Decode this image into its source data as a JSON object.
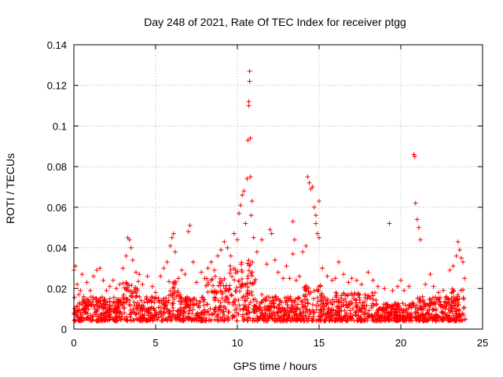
{
  "chart_data": {
    "type": "scatter",
    "title": "Day 248 of 2021, Rate Of TEC Index for receiver ptgg",
    "xlabel": "GPS time / hours",
    "ylabel": "ROTI / TECUs",
    "xlim": [
      0,
      25
    ],
    "ylim": [
      0,
      0.14
    ],
    "grid": true,
    "marker": "plus",
    "color": "#ff0000",
    "xticks": [
      {
        "value": 0,
        "label": "0"
      },
      {
        "value": 5,
        "label": "5"
      },
      {
        "value": 10,
        "label": "10"
      },
      {
        "value": 15,
        "label": "15"
      },
      {
        "value": 20,
        "label": "20"
      },
      {
        "value": 25,
        "label": "25"
      }
    ],
    "yticks": [
      {
        "value": 0,
        "label": "0"
      },
      {
        "value": 0.02,
        "label": "0.02"
      },
      {
        "value": 0.04,
        "label": "0.04"
      },
      {
        "value": 0.06,
        "label": "0.06"
      },
      {
        "value": 0.08,
        "label": "0.08"
      },
      {
        "value": 0.1,
        "label": "0.1"
      },
      {
        "value": 0.12,
        "label": "0.12"
      },
      {
        "value": 0.14,
        "label": "0.14"
      }
    ],
    "points": [
      [
        0.0,
        0.029
      ],
      [
        0.1,
        0.031
      ],
      [
        0.2,
        0.022
      ],
      [
        0.3,
        0.017
      ],
      [
        0.4,
        0.019
      ],
      [
        0.5,
        0.027
      ],
      [
        0.6,
        0.016
      ],
      [
        0.8,
        0.023
      ],
      [
        1.0,
        0.019
      ],
      [
        1.2,
        0.026
      ],
      [
        1.4,
        0.029
      ],
      [
        1.6,
        0.03
      ],
      [
        1.8,
        0.024
      ],
      [
        2.0,
        0.019
      ],
      [
        2.2,
        0.021
      ],
      [
        2.4,
        0.024
      ],
      [
        2.6,
        0.02
      ],
      [
        2.8,
        0.022
      ],
      [
        3.0,
        0.03
      ],
      [
        3.2,
        0.036
      ],
      [
        3.3,
        0.045
      ],
      [
        3.4,
        0.044
      ],
      [
        3.5,
        0.04
      ],
      [
        3.6,
        0.034
      ],
      [
        3.8,
        0.028
      ],
      [
        4.0,
        0.027
      ],
      [
        4.2,
        0.022
      ],
      [
        4.5,
        0.026
      ],
      [
        4.8,
        0.021
      ],
      [
        5.0,
        0.018
      ],
      [
        5.3,
        0.026
      ],
      [
        5.5,
        0.03
      ],
      [
        5.7,
        0.033
      ],
      [
        5.9,
        0.041
      ],
      [
        6.0,
        0.045
      ],
      [
        6.1,
        0.047
      ],
      [
        6.2,
        0.038
      ],
      [
        6.4,
        0.025
      ],
      [
        6.6,
        0.029
      ],
      [
        6.8,
        0.027
      ],
      [
        7.0,
        0.048
      ],
      [
        7.1,
        0.051
      ],
      [
        7.3,
        0.033
      ],
      [
        7.5,
        0.023
      ],
      [
        7.8,
        0.028
      ],
      [
        8.0,
        0.025
      ],
      [
        8.2,
        0.03
      ],
      [
        8.4,
        0.033
      ],
      [
        8.6,
        0.029
      ],
      [
        8.8,
        0.036
      ],
      [
        9.0,
        0.039
      ],
      [
        9.2,
        0.043
      ],
      [
        9.4,
        0.04
      ],
      [
        9.6,
        0.036
      ],
      [
        9.8,
        0.047
      ],
      [
        10.0,
        0.044
      ],
      [
        10.1,
        0.057
      ],
      [
        10.2,
        0.061
      ],
      [
        10.3,
        0.066
      ],
      [
        10.4,
        0.068
      ],
      [
        10.5,
        0.052
      ],
      [
        10.6,
        0.074
      ],
      [
        10.65,
        0.093
      ],
      [
        10.7,
        0.11
      ],
      [
        10.7,
        0.112
      ],
      [
        10.75,
        0.122
      ],
      [
        10.75,
        0.127
      ],
      [
        10.8,
        0.094
      ],
      [
        10.8,
        0.075
      ],
      [
        10.85,
        0.056
      ],
      [
        10.9,
        0.063
      ],
      [
        11.0,
        0.045
      ],
      [
        11.2,
        0.038
      ],
      [
        11.5,
        0.044
      ],
      [
        11.8,
        0.032
      ],
      [
        12.0,
        0.049
      ],
      [
        12.1,
        0.047
      ],
      [
        12.3,
        0.034
      ],
      [
        12.5,
        0.028
      ],
      [
        12.8,
        0.025
      ],
      [
        13.0,
        0.031
      ],
      [
        13.2,
        0.025
      ],
      [
        13.4,
        0.053
      ],
      [
        13.5,
        0.044
      ],
      [
        13.4,
        0.037
      ],
      [
        13.6,
        0.024
      ],
      [
        13.8,
        0.026
      ],
      [
        14.0,
        0.038
      ],
      [
        14.2,
        0.041
      ],
      [
        14.3,
        0.075
      ],
      [
        14.4,
        0.072
      ],
      [
        14.5,
        0.069
      ],
      [
        14.6,
        0.07
      ],
      [
        14.7,
        0.06
      ],
      [
        14.8,
        0.056
      ],
      [
        14.8,
        0.052
      ],
      [
        14.9,
        0.047
      ],
      [
        15.0,
        0.063
      ],
      [
        15.0,
        0.045
      ],
      [
        15.2,
        0.03
      ],
      [
        15.5,
        0.026
      ],
      [
        15.8,
        0.024
      ],
      [
        16.0,
        0.025
      ],
      [
        16.2,
        0.033
      ],
      [
        16.5,
        0.027
      ],
      [
        16.8,
        0.023
      ],
      [
        17.0,
        0.025
      ],
      [
        17.3,
        0.024
      ],
      [
        17.6,
        0.022
      ],
      [
        18.0,
        0.028
      ],
      [
        18.3,
        0.024
      ],
      [
        18.6,
        0.021
      ],
      [
        19.0,
        0.02
      ],
      [
        19.3,
        0.052
      ],
      [
        19.5,
        0.019
      ],
      [
        19.8,
        0.021
      ],
      [
        20.0,
        0.024
      ],
      [
        20.2,
        0.019
      ],
      [
        20.5,
        0.021
      ],
      [
        20.8,
        0.086
      ],
      [
        20.85,
        0.085
      ],
      [
        20.9,
        0.062
      ],
      [
        21.0,
        0.054
      ],
      [
        21.1,
        0.05
      ],
      [
        21.2,
        0.044
      ],
      [
        21.5,
        0.022
      ],
      [
        21.8,
        0.027
      ],
      [
        22.0,
        0.021
      ],
      [
        22.3,
        0.018
      ],
      [
        22.6,
        0.019
      ],
      [
        23.0,
        0.029
      ],
      [
        23.2,
        0.031
      ],
      [
        23.4,
        0.036
      ],
      [
        23.5,
        0.043
      ],
      [
        23.6,
        0.039
      ],
      [
        23.7,
        0.035
      ],
      [
        23.8,
        0.033
      ],
      [
        23.9,
        0.025
      ],
      [
        0.5,
        0.012
      ],
      [
        1.5,
        0.014
      ],
      [
        2.5,
        0.013
      ],
      [
        3.5,
        0.016
      ],
      [
        4.5,
        0.013
      ],
      [
        5.5,
        0.015
      ],
      [
        6.5,
        0.017
      ],
      [
        7.5,
        0.014
      ],
      [
        8.5,
        0.018
      ],
      [
        9.5,
        0.02
      ],
      [
        10.5,
        0.022
      ],
      [
        11.5,
        0.017
      ],
      [
        12.5,
        0.015
      ],
      [
        13.5,
        0.013
      ],
      [
        14.5,
        0.018
      ],
      [
        15.5,
        0.014
      ],
      [
        16.5,
        0.012
      ],
      [
        17.5,
        0.013
      ],
      [
        18.5,
        0.012
      ],
      [
        19.5,
        0.011
      ],
      [
        20.5,
        0.012
      ],
      [
        21.5,
        0.012
      ],
      [
        22.5,
        0.011
      ],
      [
        23.5,
        0.013
      ]
    ]
  }
}
